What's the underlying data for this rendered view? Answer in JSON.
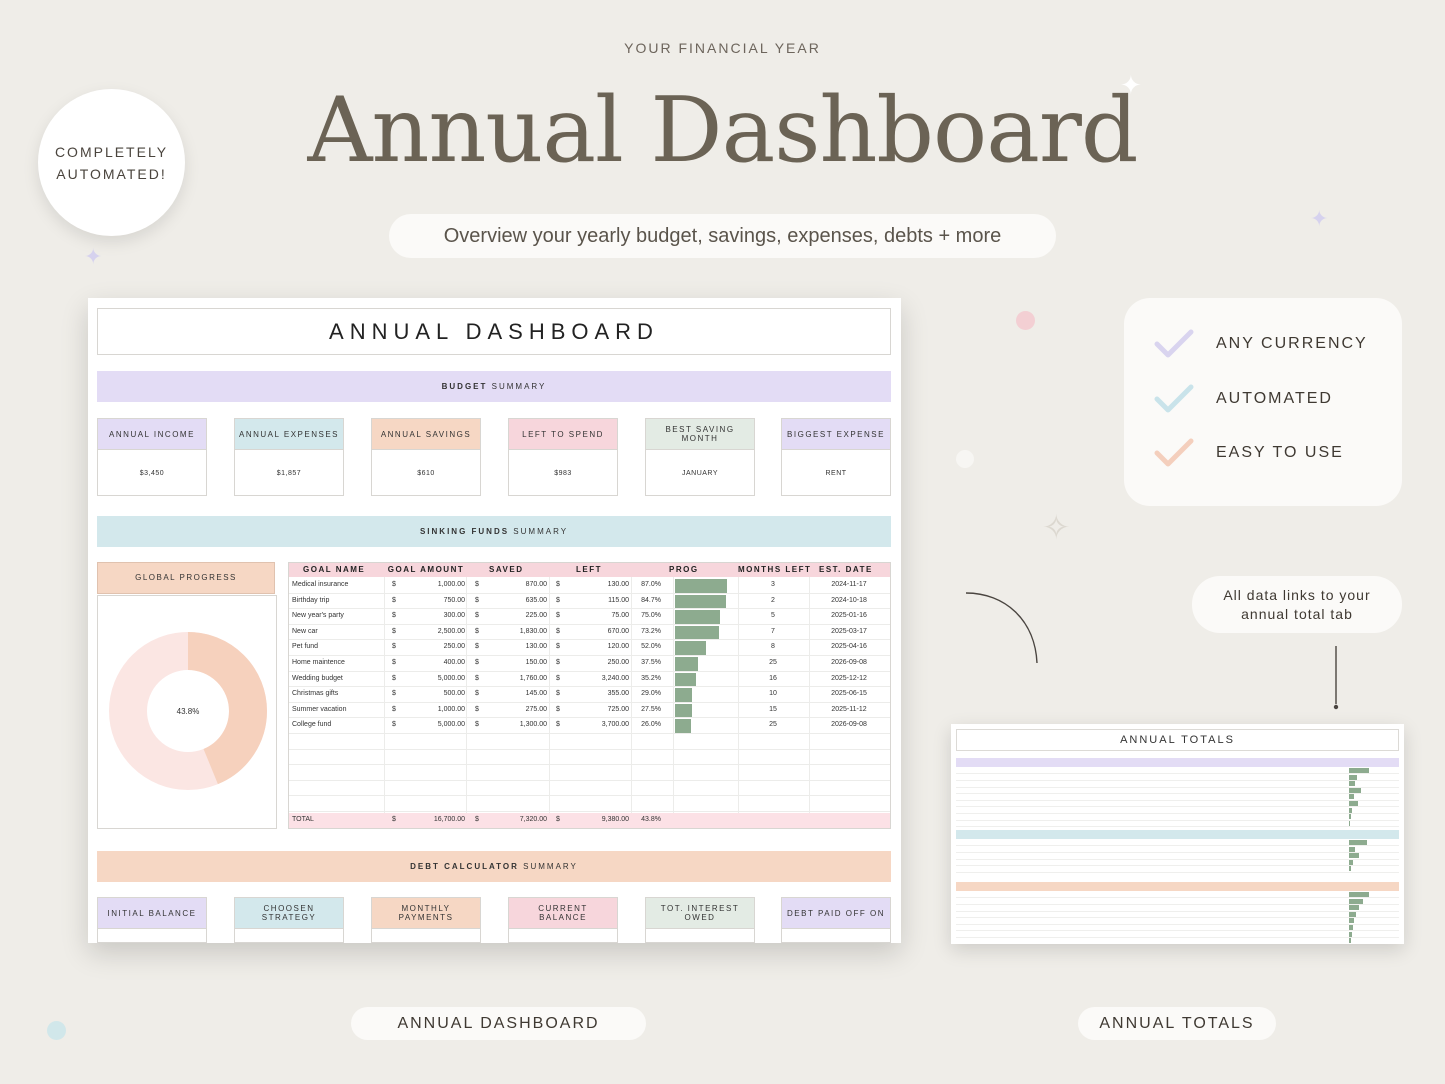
{
  "header": {
    "kicker": "YOUR FINANCIAL YEAR",
    "title": "Annual Dashboard",
    "subtitle": "Overview your yearly budget, savings, expenses, debts + more"
  },
  "badge": {
    "line1": "COMPLETELY",
    "line2": "AUTOMATED!"
  },
  "features": [
    {
      "label": "ANY CURRENCY",
      "check_color": "#d9d4ef"
    },
    {
      "label": "AUTOMATED",
      "check_color": "#c9e3ea"
    },
    {
      "label": "EASY TO USE",
      "check_color": "#f4cfbd"
    }
  ],
  "callout": {
    "line1": "All data links to your",
    "line2": "annual total tab"
  },
  "dashboard": {
    "title": "ANNUAL DASHBOARD",
    "budget_band": {
      "bold": "BUDGET",
      "rest": " SUMMARY",
      "color": "#e3dcf5"
    },
    "stats": [
      {
        "label": "ANNUAL INCOME",
        "value": "$3,450",
        "color": "#e3dcf5"
      },
      {
        "label": "ANNUAL EXPENSES",
        "value": "$1,857",
        "color": "#d3e8ec"
      },
      {
        "label": "ANNUAL SAVINGS",
        "value": "$610",
        "color": "#f6d7c4"
      },
      {
        "label": "LEFT TO SPEND",
        "value": "$983",
        "color": "#f7d6dc"
      },
      {
        "label": "BEST SAVING MONTH",
        "value": "JANUARY",
        "color": "#e3ebe4"
      },
      {
        "label": "BIGGEST EXPENSE",
        "value": "RENT",
        "color": "#e3dcf5"
      }
    ],
    "sinking_band": {
      "bold": "SINKING FUNDS",
      "rest": " SUMMARY",
      "color": "#d3e8ec"
    },
    "global_progress": {
      "label": "GLOBAL PROGRESS",
      "value": "43.8%",
      "percent": 43.8
    },
    "sinking_columns": [
      "GOAL NAME",
      "GOAL AMOUNT",
      "SAVED",
      "LEFT",
      "PROG",
      "MONTHS LEFT",
      "EST. DATE"
    ],
    "sinking_rows": [
      {
        "name": "Medical insurance",
        "goal": "1,000.00",
        "saved": "870.00",
        "left": "130.00",
        "pct": "87.0%",
        "progress": 87.0,
        "months": "3",
        "date": "2024-11-17"
      },
      {
        "name": "Birthday trip",
        "goal": "750.00",
        "saved": "635.00",
        "left": "115.00",
        "pct": "84.7%",
        "progress": 84.7,
        "months": "2",
        "date": "2024-10-18"
      },
      {
        "name": "New year's party",
        "goal": "300.00",
        "saved": "225.00",
        "left": "75.00",
        "pct": "75.0%",
        "progress": 75.0,
        "months": "5",
        "date": "2025-01-16"
      },
      {
        "name": "New car",
        "goal": "2,500.00",
        "saved": "1,830.00",
        "left": "670.00",
        "pct": "73.2%",
        "progress": 73.2,
        "months": "7",
        "date": "2025-03-17"
      },
      {
        "name": "Pet fund",
        "goal": "250.00",
        "saved": "130.00",
        "left": "120.00",
        "pct": "52.0%",
        "progress": 52.0,
        "months": "8",
        "date": "2025-04-16"
      },
      {
        "name": "Home maintence",
        "goal": "400.00",
        "saved": "150.00",
        "left": "250.00",
        "pct": "37.5%",
        "progress": 37.5,
        "months": "25",
        "date": "2026-09-08"
      },
      {
        "name": "Wedding budget",
        "goal": "5,000.00",
        "saved": "1,760.00",
        "left": "3,240.00",
        "pct": "35.2%",
        "progress": 35.2,
        "months": "16",
        "date": "2025-12-12"
      },
      {
        "name": "Christmas gifts",
        "goal": "500.00",
        "saved": "145.00",
        "left": "355.00",
        "pct": "29.0%",
        "progress": 29.0,
        "months": "10",
        "date": "2025-06-15"
      },
      {
        "name": "Summer vacation",
        "goal": "1,000.00",
        "saved": "275.00",
        "left": "725.00",
        "pct": "27.5%",
        "progress": 27.5,
        "months": "15",
        "date": "2025-11-12"
      },
      {
        "name": "College fund",
        "goal": "5,000.00",
        "saved": "1,300.00",
        "left": "3,700.00",
        "pct": "26.0%",
        "progress": 26.0,
        "months": "25",
        "date": "2026-09-08"
      }
    ],
    "currency_symbol": "$",
    "sinking_total": {
      "label": "TOTAL",
      "goal": "16,700.00",
      "saved": "7,320.00",
      "left": "9,380.00",
      "pct": "43.8%"
    },
    "debt_band": {
      "bold": "DEBT CALCULATOR",
      "rest": " SUMMARY",
      "color": "#f6d7c4"
    },
    "debt_stats": [
      {
        "label": "INITIAL BALANCE",
        "color": "#e3dcf5"
      },
      {
        "label": "CHOOSEN STRATEGY",
        "color": "#d3e8ec"
      },
      {
        "label": "MONTHLY PAYMENTS",
        "color": "#f6d7c4"
      },
      {
        "label": "CURRENT BALANCE",
        "color": "#f7d6dc"
      },
      {
        "label": "TOT. INTEREST OWED",
        "color": "#e3ebe4"
      },
      {
        "label": "DEBT PAID OFF ON",
        "color": "#e3dcf5"
      }
    ]
  },
  "annual_totals": {
    "title": "ANNUAL TOTALS",
    "section_colors": [
      "#e3dcf5",
      "#d3e8ec",
      "#f6d7c4"
    ]
  },
  "bottom_labels": {
    "dashboard": "ANNUAL DASHBOARD",
    "totals": "ANNUAL TOTALS"
  },
  "colors": {
    "background": "#efede8",
    "title": "#6b6355",
    "progress_green": "#8dab8f",
    "donut_fill": "#f6d1bd",
    "donut_rest": "#fbe6e3"
  }
}
